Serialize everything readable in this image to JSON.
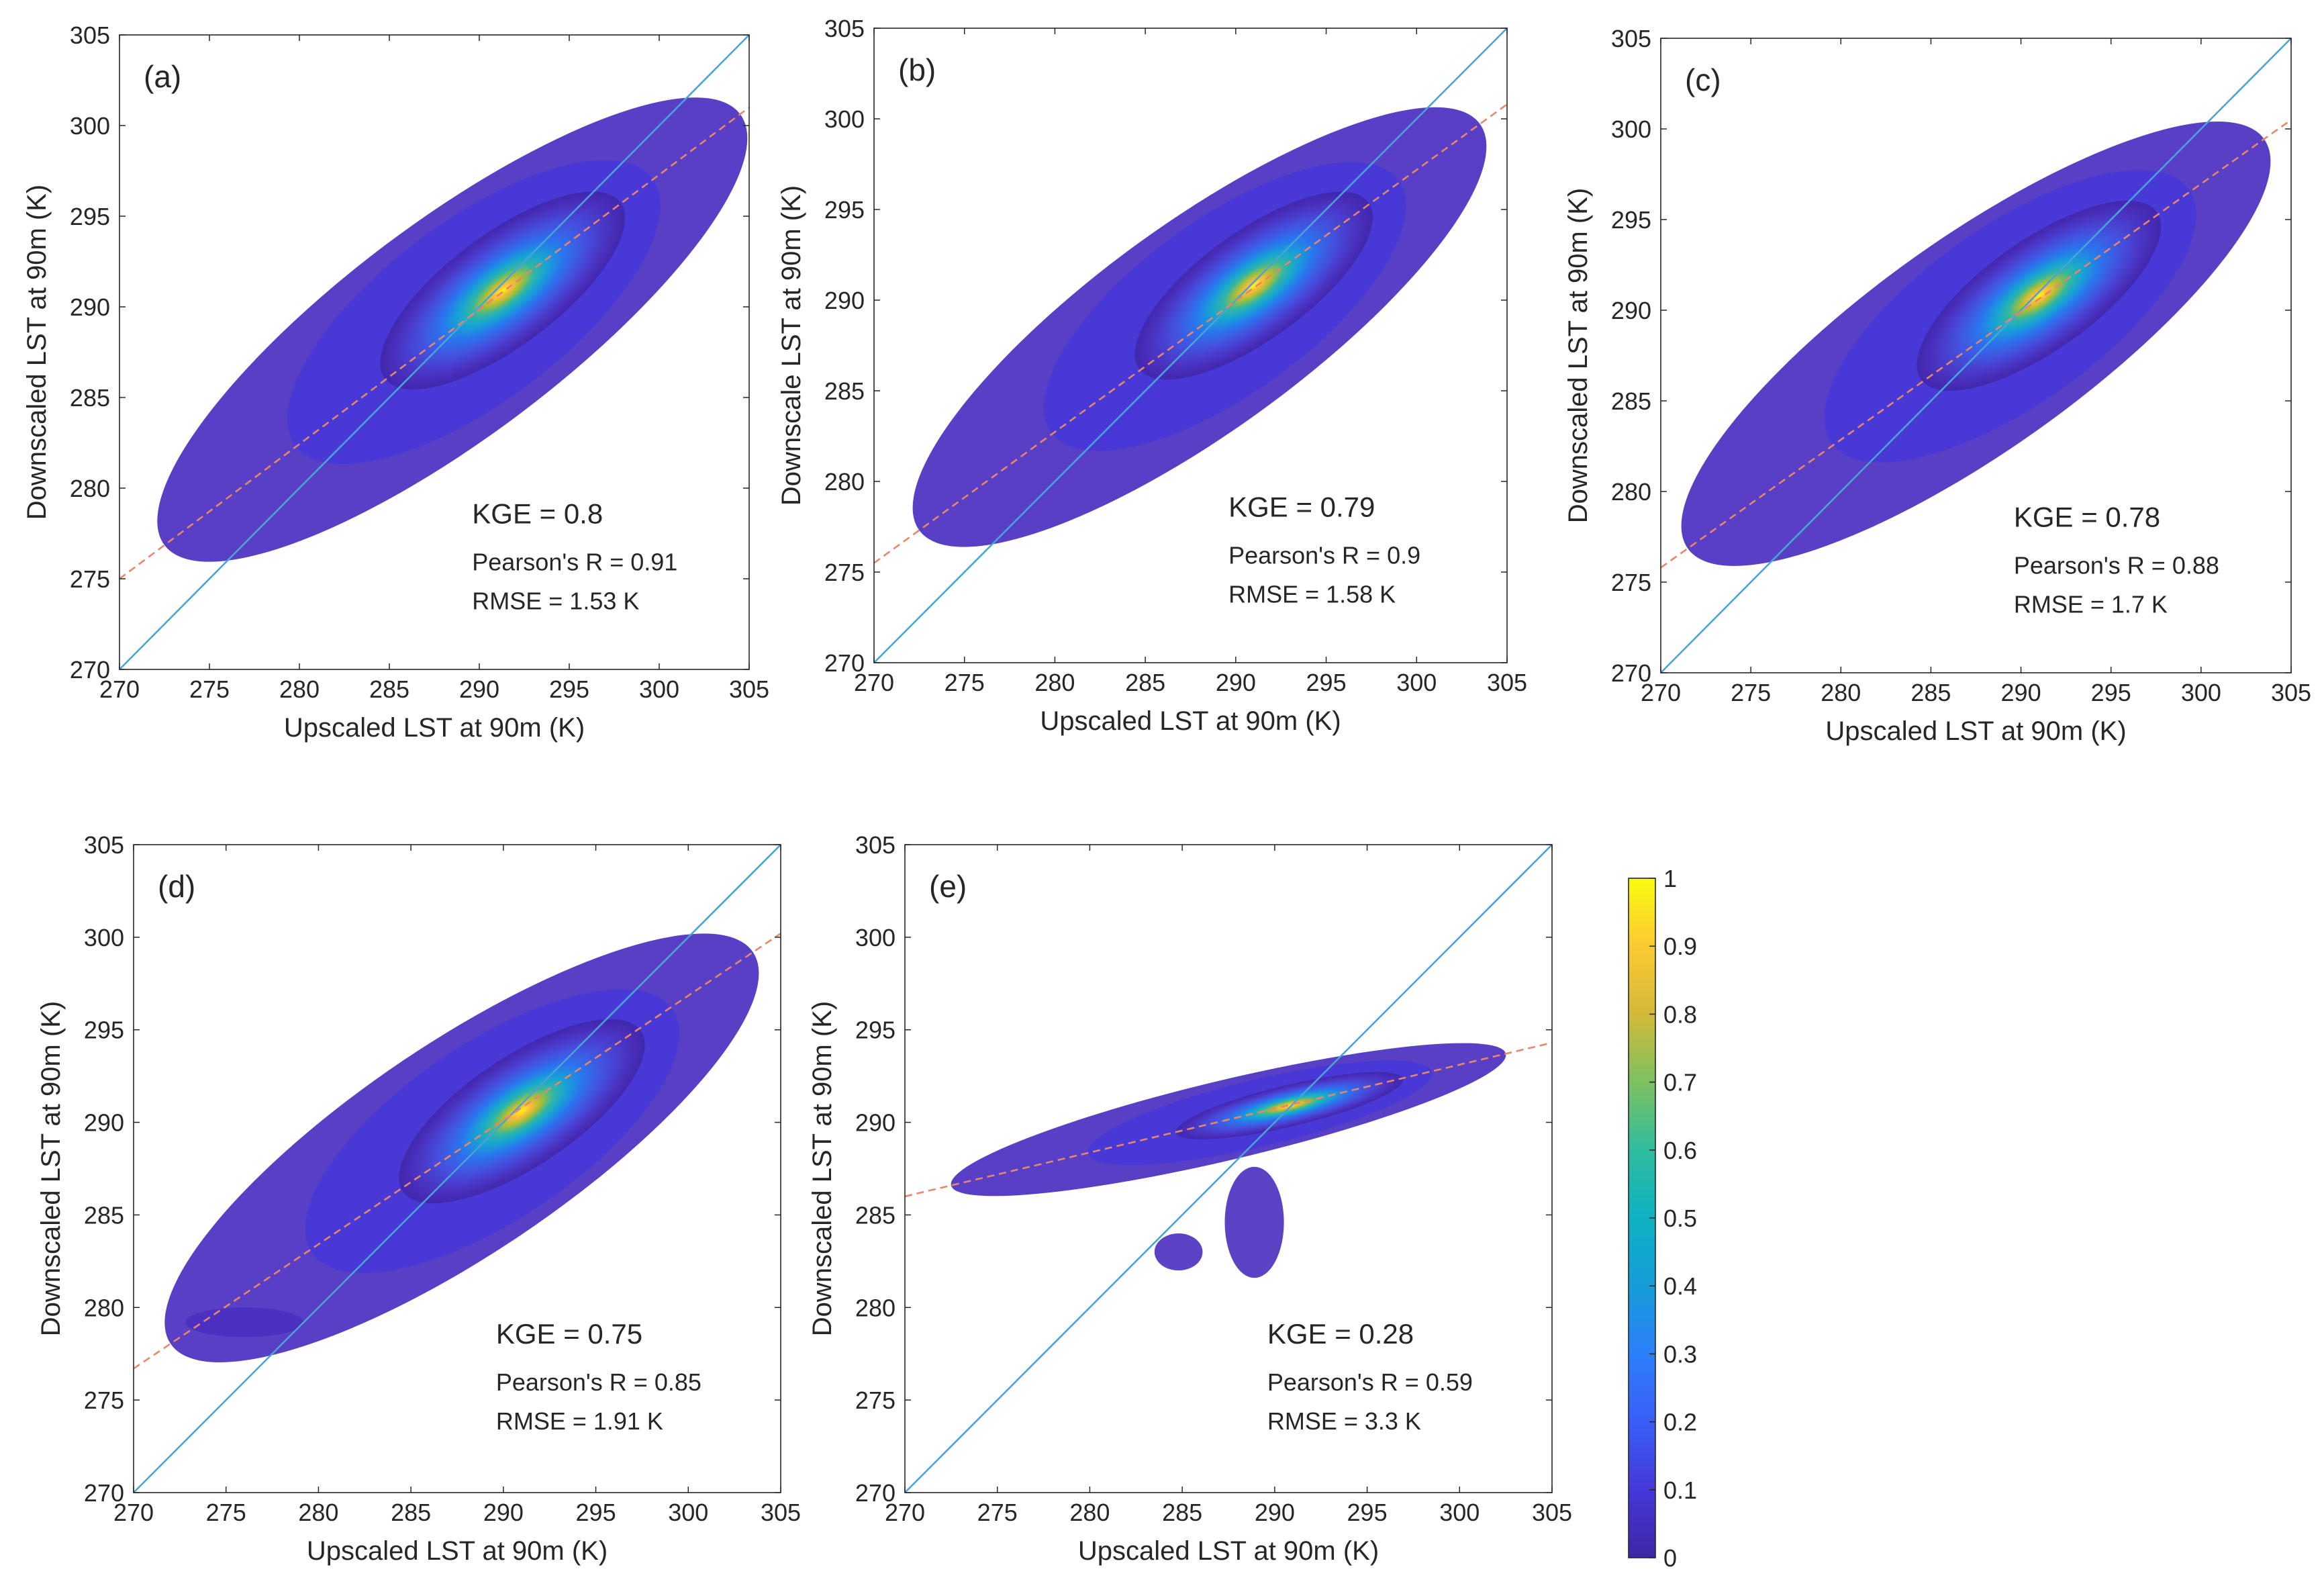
{
  "figure": {
    "colorbar": {
      "ticks": [
        "0",
        "0.1",
        "0.2",
        "0.3",
        "0.4",
        "0.5",
        "0.6",
        "0.7",
        "0.8",
        "0.9",
        "1"
      ],
      "range": [
        0,
        1
      ],
      "colormap": "parula"
    },
    "colors": {
      "one_to_one_line": "#4aa3d6",
      "fit_line": "#e8866a",
      "axis": "#262626"
    }
  },
  "chart_data": [
    {
      "type": "scatter",
      "panel_label": "(a)",
      "xlabel": "Upscaled LST at 90m (K)",
      "ylabel": "Downscaled LST at 90m (K)",
      "xlim": [
        270,
        305
      ],
      "ylim": [
        270,
        305
      ],
      "xticks": [
        "270",
        "275",
        "280",
        "285",
        "290",
        "295",
        "300",
        "305"
      ],
      "yticks": [
        "270",
        "275",
        "280",
        "285",
        "290",
        "295",
        "300",
        "305"
      ],
      "fit_line": {
        "start": [
          270,
          275.0
        ],
        "end": [
          305,
          301.0
        ]
      },
      "density_peak": [
        291.3,
        290.9
      ],
      "point_range_x": [
        272.5,
        304.5
      ],
      "stats": {
        "kge": "KGE = 0.8",
        "r": "Pearson's R = 0.91",
        "rmse": "RMSE = 1.53 K"
      }
    },
    {
      "type": "scatter",
      "panel_label": "(b)",
      "xlabel": "Upscaled LST at 90m (K)",
      "ylabel": "Downscale LST at 90m (K)",
      "xlim": [
        270,
        305
      ],
      "ylim": [
        270,
        305
      ],
      "xticks": [
        "270",
        "275",
        "280",
        "285",
        "290",
        "295",
        "300",
        "305"
      ],
      "yticks": [
        "270",
        "275",
        "280",
        "285",
        "290",
        "295",
        "300",
        "305"
      ],
      "fit_line": {
        "start": [
          270,
          275.5
        ],
        "end": [
          305,
          300.8
        ]
      },
      "density_peak": [
        291.0,
        290.8
      ],
      "point_range_x": [
        272.5,
        303.5
      ],
      "stats": {
        "kge": "KGE = 0.79",
        "r": "Pearson's R = 0.9",
        "rmse": "RMSE = 1.58 K"
      }
    },
    {
      "type": "scatter",
      "panel_label": "(c)",
      "xlabel": "Upscaled LST at 90m (K)",
      "ylabel": "Downscaled LST at 90m (K)",
      "xlim": [
        270,
        305
      ],
      "ylim": [
        270,
        305
      ],
      "xticks": [
        "270",
        "275",
        "280",
        "285",
        "290",
        "295",
        "300",
        "305"
      ],
      "yticks": [
        "270",
        "275",
        "280",
        "285",
        "290",
        "295",
        "300",
        "305"
      ],
      "fit_line": {
        "start": [
          270,
          275.8
        ],
        "end": [
          305,
          300.5
        ]
      },
      "density_peak": [
        291.0,
        290.8
      ],
      "point_range_x": [
        271.5,
        303.5
      ],
      "stats": {
        "kge": "KGE = 0.78",
        "r": "Pearson's R = 0.88",
        "rmse": "RMSE = 1.7 K"
      }
    },
    {
      "type": "scatter",
      "panel_label": "(d)",
      "xlabel": "Upscaled LST at 90m (K)",
      "ylabel": "Downscaled LST at 90m (K)",
      "xlim": [
        270,
        305
      ],
      "ylim": [
        270,
        305
      ],
      "xticks": [
        "270",
        "275",
        "280",
        "285",
        "290",
        "295",
        "300",
        "305"
      ],
      "yticks": [
        "270",
        "275",
        "280",
        "285",
        "290",
        "295",
        "300",
        "305"
      ],
      "fit_line": {
        "start": [
          270,
          276.7
        ],
        "end": [
          305,
          300.2
        ]
      },
      "density_peak": [
        291.0,
        290.6
      ],
      "point_range_x": [
        272.0,
        303.5
      ],
      "stats": {
        "kge": "KGE = 0.75",
        "r": "Pearson's R = 0.85",
        "rmse": "RMSE = 1.91 K"
      }
    },
    {
      "type": "scatter",
      "panel_label": "(e)",
      "xlabel": "Upscaled LST at 90m (K)",
      "ylabel": "Downscaled LST at 90m (K)",
      "xlim": [
        270,
        305
      ],
      "ylim": [
        270,
        305
      ],
      "xticks": [
        "270",
        "275",
        "280",
        "285",
        "290",
        "295",
        "300",
        "305"
      ],
      "yticks": [
        "270",
        "275",
        "280",
        "285",
        "290",
        "295",
        "300",
        "305"
      ],
      "fit_line": {
        "start": [
          270,
          286.0
        ],
        "end": [
          305,
          294.3
        ]
      },
      "density_peak": [
        290.8,
        290.9
      ],
      "point_range_x": [
        272.5,
        302.5
      ],
      "stats": {
        "kge": "KGE = 0.28",
        "r": "Pearson's R = 0.59",
        "rmse": "RMSE = 3.3 K"
      }
    }
  ]
}
